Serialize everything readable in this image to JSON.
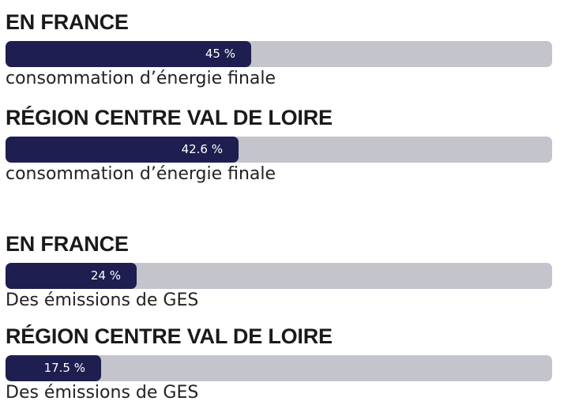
{
  "chart_data": {
    "type": "bar",
    "orientation": "horizontal",
    "scale": [
      0,
      100
    ],
    "unit": "%",
    "colors": {
      "fill": "#1e1e50",
      "track": "#c3c4cc",
      "value_text": "#ffffff",
      "title_text": "#1a1a1a"
    },
    "bars": [
      {
        "title": "EN FRANCE",
        "value": 45,
        "value_label": "45 %",
        "caption": "consommation d’énergie finale"
      },
      {
        "title": "RÉGION CENTRE VAL DE LOIRE",
        "value": 42.6,
        "value_label": "42.6 %",
        "caption": "consommation d’énergie finale"
      },
      {
        "title": "EN FRANCE",
        "value": 24,
        "value_label": "24 %",
        "caption": "Des émissions de GES"
      },
      {
        "title": "RÉGION CENTRE VAL DE LOIRE",
        "value": 17.5,
        "value_label": "17.5 %",
        "caption": "Des émissions de GES"
      }
    ]
  }
}
